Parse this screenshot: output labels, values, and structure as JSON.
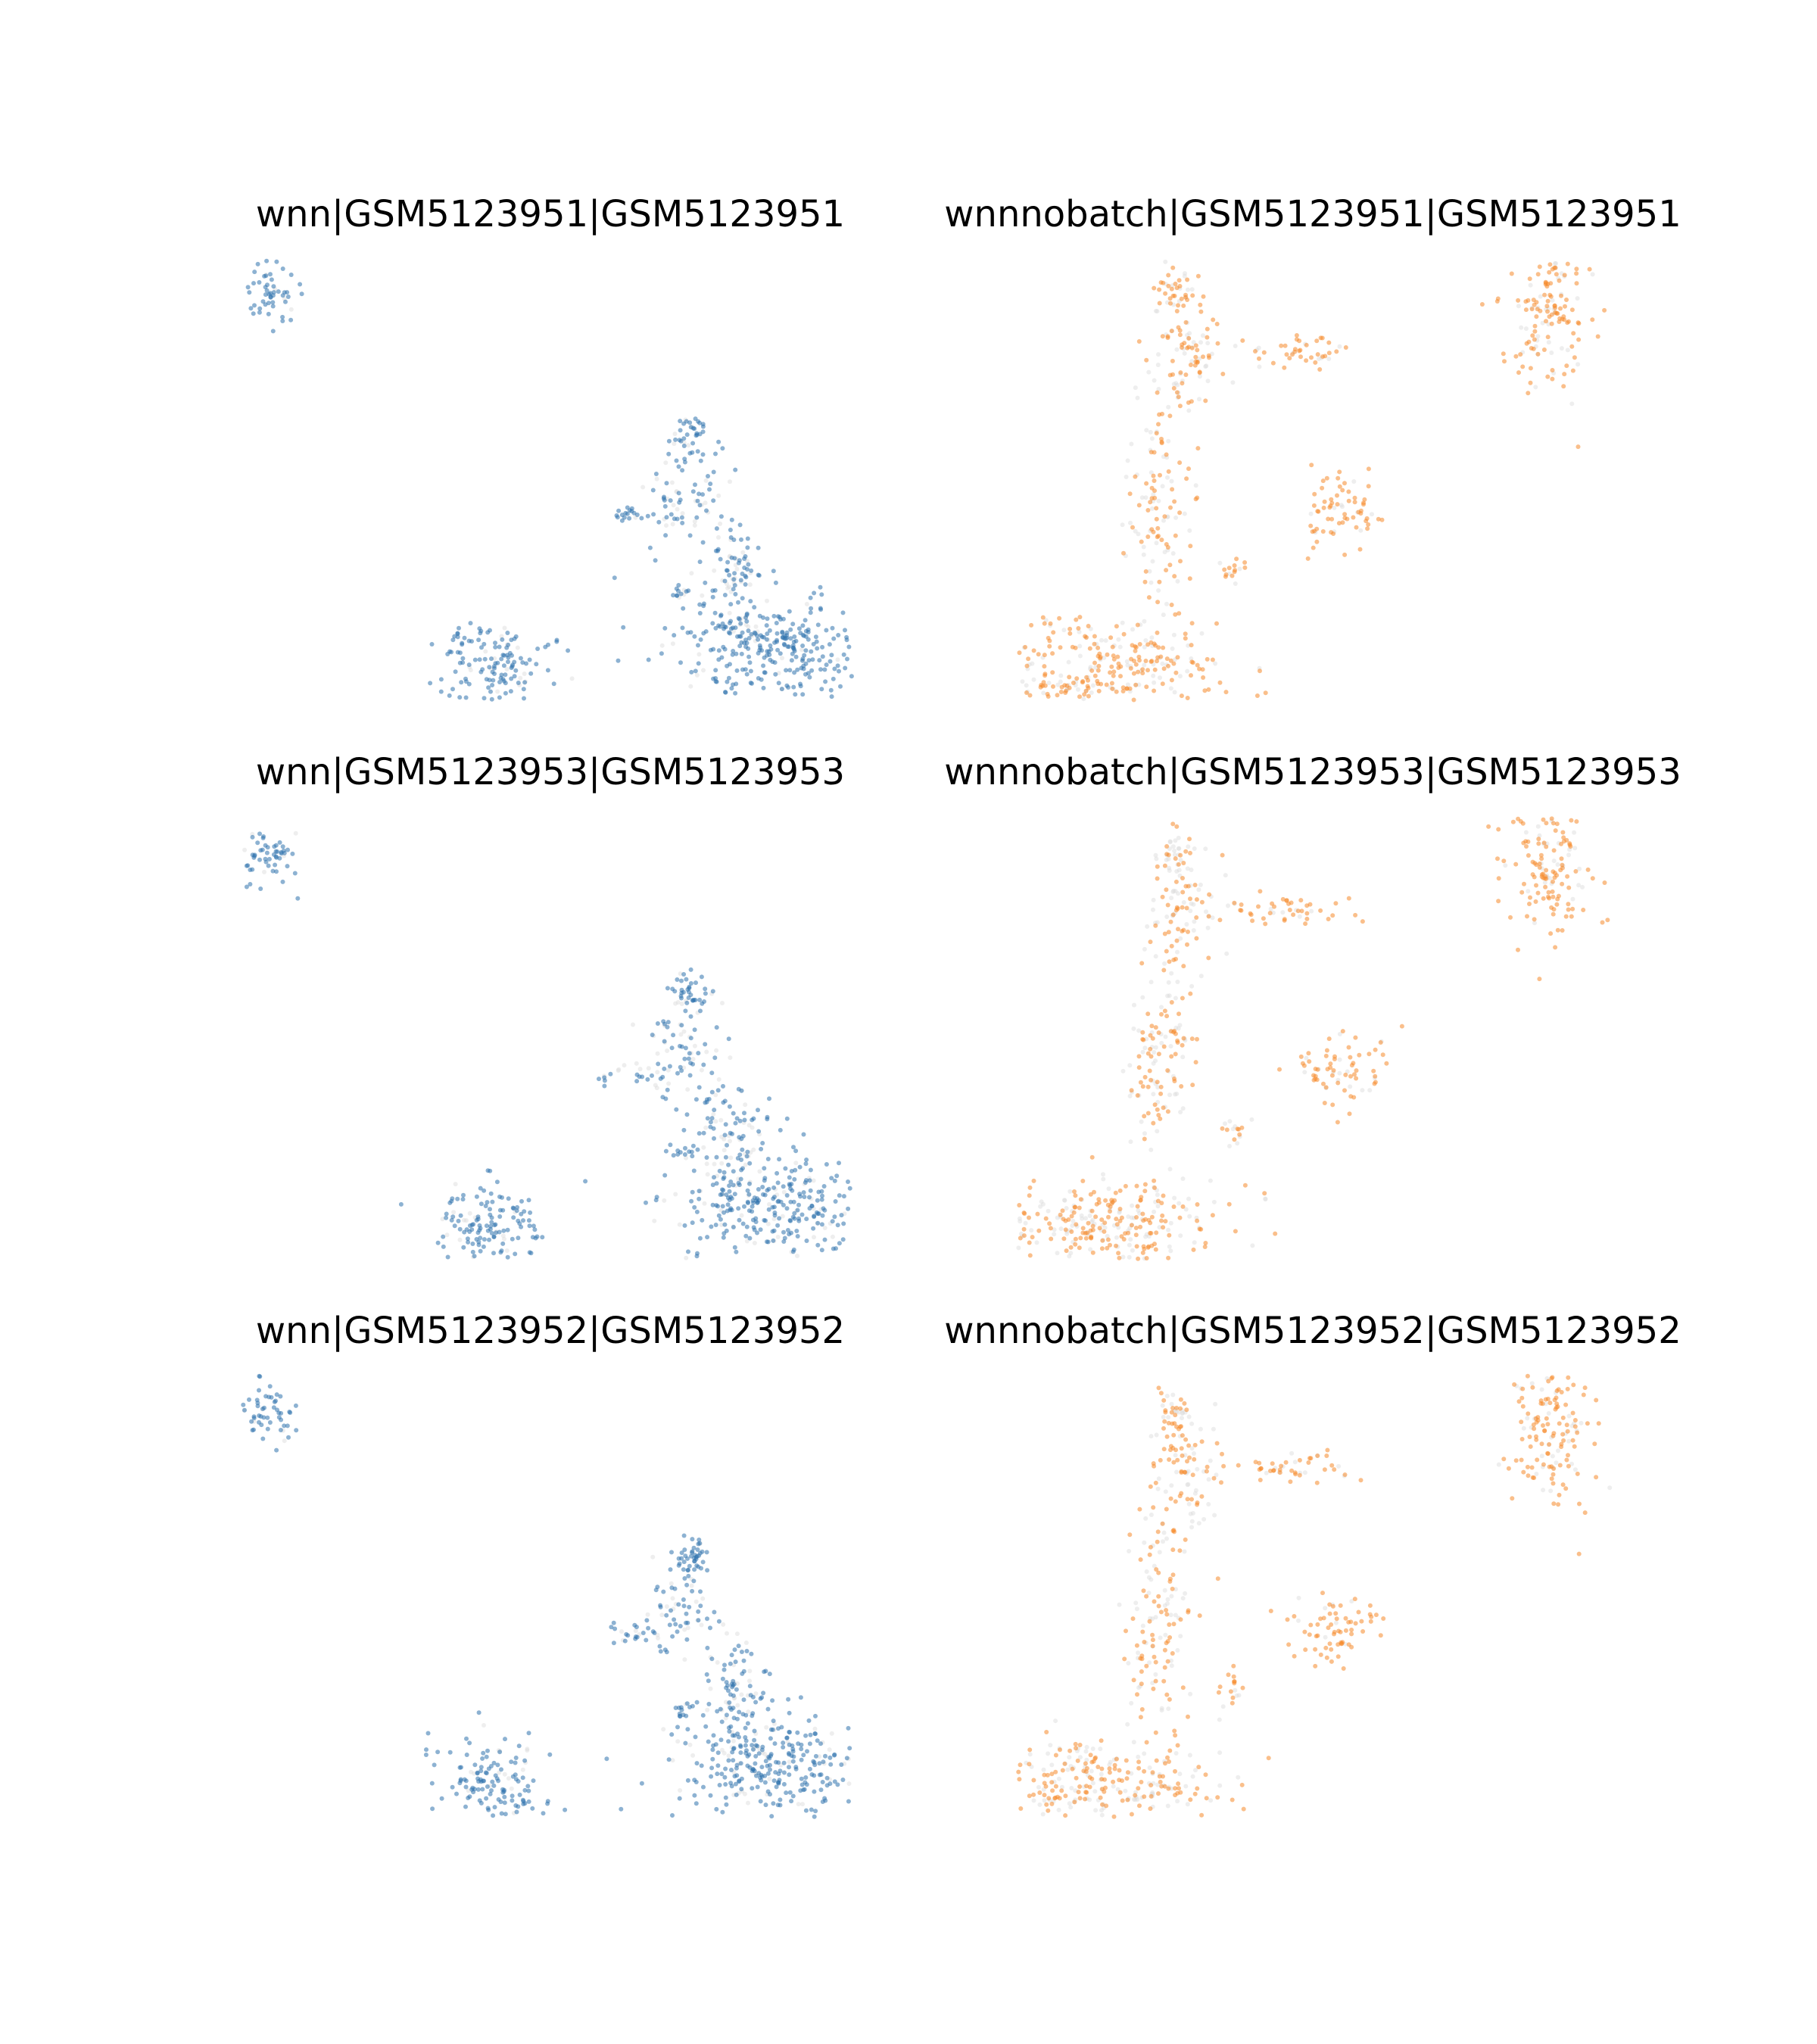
{
  "colors": {
    "background_points": "#d9d9d9",
    "wnn": "#2f72ad",
    "wnnnobatch": "#f58a2c"
  },
  "chart_data": [
    {
      "type": "scatter",
      "title": "wnn|GSM5123951|GSM5123951",
      "xlabel": "",
      "ylabel": "",
      "grid": false,
      "axes_visible": false,
      "series": [
        {
          "color": "#2f72ad",
          "clusters": [
            {
              "x": 0.5,
              "y": 8.3,
              "sx": 0.25,
              "sy": 0.35,
              "n": 55,
              "fill": 0.9
            },
            {
              "x": 4.5,
              "y": 0.6,
              "sx": 0.5,
              "sy": 0.45,
              "n": 140,
              "fill": 0.85
            },
            {
              "x": 8.2,
              "y": 5.4,
              "sx": 0.22,
              "sy": 0.22,
              "n": 40,
              "fill": 0.85
            },
            {
              "x": 8.0,
              "y": 4.2,
              "sx": 0.35,
              "sy": 0.5,
              "n": 60,
              "fill": 0.6
            },
            {
              "x": 7.1,
              "y": 3.7,
              "sx": 0.35,
              "sy": 0.12,
              "n": 25,
              "fill": 0.7
            },
            {
              "x": 8.9,
              "y": 2.5,
              "sx": 0.3,
              "sy": 0.6,
              "n": 90,
              "fill": 0.7
            },
            {
              "x": 9.6,
              "y": 1.0,
              "sx": 0.9,
              "sy": 0.55,
              "n": 300,
              "fill": 0.85
            },
            {
              "x": 8.0,
              "y": 2.1,
              "sx": 0.12,
              "sy": 0.1,
              "n": 12,
              "fill": 0.8
            }
          ]
        }
      ]
    },
    {
      "type": "scatter",
      "title": "wnnnobatch|GSM5123951|GSM5123951",
      "xlabel": "",
      "ylabel": "",
      "grid": false,
      "axes_visible": false,
      "series": [
        {
          "color": "#f58a2c",
          "clusters": [
            {
              "x": 9.6,
              "y": 8.0,
              "sx": 0.4,
              "sy": 0.8,
              "n": 150,
              "fill": 0.75
            },
            {
              "x": 2.8,
              "y": 8.3,
              "sx": 0.2,
              "sy": 0.25,
              "n": 40,
              "fill": 0.6
            },
            {
              "x": 3.0,
              "y": 7.0,
              "sx": 0.35,
              "sy": 0.6,
              "n": 80,
              "fill": 0.55
            },
            {
              "x": 4.9,
              "y": 7.1,
              "sx": 0.5,
              "sy": 0.18,
              "n": 45,
              "fill": 0.8
            },
            {
              "x": 2.5,
              "y": 4.0,
              "sx": 0.3,
              "sy": 1.3,
              "n": 130,
              "fill": 0.55
            },
            {
              "x": 1.5,
              "y": 0.6,
              "sx": 1.1,
              "sy": 0.5,
              "n": 300,
              "fill": 0.6
            },
            {
              "x": 5.8,
              "y": 3.8,
              "sx": 0.4,
              "sy": 0.4,
              "n": 70,
              "fill": 0.8
            },
            {
              "x": 3.8,
              "y": 2.6,
              "sx": 0.15,
              "sy": 0.15,
              "n": 15,
              "fill": 0.7
            }
          ]
        }
      ]
    },
    {
      "type": "scatter",
      "title": "wnn|GSM5123953|GSM5123953",
      "xlabel": "",
      "ylabel": "",
      "grid": false,
      "axes_visible": false,
      "series": [
        {
          "color": "#2f72ad",
          "clusters": [
            {
              "x": 0.5,
              "y": 8.3,
              "sx": 0.25,
              "sy": 0.35,
              "n": 55,
              "fill": 0.9
            },
            {
              "x": 4.5,
              "y": 0.6,
              "sx": 0.5,
              "sy": 0.45,
              "n": 140,
              "fill": 0.85
            },
            {
              "x": 8.2,
              "y": 5.4,
              "sx": 0.22,
              "sy": 0.22,
              "n": 40,
              "fill": 0.85
            },
            {
              "x": 8.0,
              "y": 4.2,
              "sx": 0.35,
              "sy": 0.5,
              "n": 60,
              "fill": 0.6
            },
            {
              "x": 7.1,
              "y": 3.7,
              "sx": 0.35,
              "sy": 0.12,
              "n": 25,
              "fill": 0.7
            },
            {
              "x": 8.9,
              "y": 2.5,
              "sx": 0.3,
              "sy": 0.6,
              "n": 90,
              "fill": 0.7
            },
            {
              "x": 9.6,
              "y": 1.0,
              "sx": 0.9,
              "sy": 0.55,
              "n": 300,
              "fill": 0.85
            },
            {
              "x": 8.0,
              "y": 2.1,
              "sx": 0.12,
              "sy": 0.1,
              "n": 12,
              "fill": 0.8
            }
          ]
        }
      ]
    },
    {
      "type": "scatter",
      "title": "wnnnobatch|GSM5123953|GSM5123953",
      "xlabel": "",
      "ylabel": "",
      "grid": false,
      "axes_visible": false,
      "series": [
        {
          "color": "#f58a2c",
          "clusters": [
            {
              "x": 9.6,
              "y": 8.0,
              "sx": 0.4,
              "sy": 0.8,
              "n": 150,
              "fill": 0.75
            },
            {
              "x": 2.8,
              "y": 8.3,
              "sx": 0.2,
              "sy": 0.25,
              "n": 40,
              "fill": 0.6
            },
            {
              "x": 3.0,
              "y": 7.0,
              "sx": 0.35,
              "sy": 0.6,
              "n": 80,
              "fill": 0.55
            },
            {
              "x": 4.9,
              "y": 7.1,
              "sx": 0.5,
              "sy": 0.18,
              "n": 45,
              "fill": 0.8
            },
            {
              "x": 2.5,
              "y": 4.0,
              "sx": 0.3,
              "sy": 1.3,
              "n": 130,
              "fill": 0.55
            },
            {
              "x": 1.5,
              "y": 0.6,
              "sx": 1.1,
              "sy": 0.5,
              "n": 300,
              "fill": 0.6
            },
            {
              "x": 5.8,
              "y": 3.8,
              "sx": 0.4,
              "sy": 0.4,
              "n": 70,
              "fill": 0.8
            },
            {
              "x": 3.8,
              "y": 2.6,
              "sx": 0.15,
              "sy": 0.15,
              "n": 15,
              "fill": 0.7
            }
          ]
        }
      ]
    },
    {
      "type": "scatter",
      "title": "wnn|GSM5123952|GSM5123952",
      "xlabel": "",
      "ylabel": "",
      "grid": false,
      "axes_visible": false,
      "series": [
        {
          "color": "#2f72ad",
          "clusters": [
            {
              "x": 0.5,
              "y": 8.3,
              "sx": 0.25,
              "sy": 0.35,
              "n": 55,
              "fill": 0.9
            },
            {
              "x": 4.5,
              "y": 0.6,
              "sx": 0.5,
              "sy": 0.45,
              "n": 140,
              "fill": 0.85
            },
            {
              "x": 8.2,
              "y": 5.4,
              "sx": 0.22,
              "sy": 0.22,
              "n": 40,
              "fill": 0.85
            },
            {
              "x": 8.0,
              "y": 4.2,
              "sx": 0.35,
              "sy": 0.5,
              "n": 60,
              "fill": 0.6
            },
            {
              "x": 7.1,
              "y": 3.7,
              "sx": 0.35,
              "sy": 0.12,
              "n": 25,
              "fill": 0.7
            },
            {
              "x": 8.9,
              "y": 2.5,
              "sx": 0.3,
              "sy": 0.6,
              "n": 90,
              "fill": 0.7
            },
            {
              "x": 9.6,
              "y": 1.0,
              "sx": 0.9,
              "sy": 0.55,
              "n": 300,
              "fill": 0.85
            },
            {
              "x": 8.0,
              "y": 2.1,
              "sx": 0.12,
              "sy": 0.1,
              "n": 12,
              "fill": 0.8
            }
          ]
        }
      ]
    },
    {
      "type": "scatter",
      "title": "wnnnobatch|GSM5123952|GSM5123952",
      "xlabel": "",
      "ylabel": "",
      "grid": false,
      "axes_visible": false,
      "series": [
        {
          "color": "#f58a2c",
          "clusters": [
            {
              "x": 9.6,
              "y": 8.0,
              "sx": 0.4,
              "sy": 0.8,
              "n": 150,
              "fill": 0.75
            },
            {
              "x": 2.8,
              "y": 8.3,
              "sx": 0.2,
              "sy": 0.25,
              "n": 40,
              "fill": 0.6
            },
            {
              "x": 3.0,
              "y": 7.0,
              "sx": 0.35,
              "sy": 0.6,
              "n": 80,
              "fill": 0.55
            },
            {
              "x": 4.9,
              "y": 7.1,
              "sx": 0.5,
              "sy": 0.18,
              "n": 45,
              "fill": 0.8
            },
            {
              "x": 2.5,
              "y": 4.0,
              "sx": 0.3,
              "sy": 1.3,
              "n": 130,
              "fill": 0.55
            },
            {
              "x": 1.5,
              "y": 0.6,
              "sx": 1.1,
              "sy": 0.5,
              "n": 300,
              "fill": 0.6
            },
            {
              "x": 5.8,
              "y": 3.8,
              "sx": 0.4,
              "sy": 0.4,
              "n": 70,
              "fill": 0.8
            },
            {
              "x": 3.8,
              "y": 2.6,
              "sx": 0.15,
              "sy": 0.15,
              "n": 15,
              "fill": 0.7
            }
          ]
        }
      ]
    }
  ]
}
